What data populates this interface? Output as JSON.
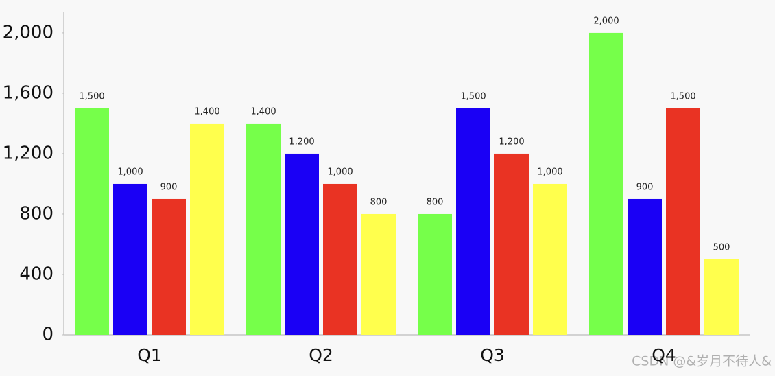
{
  "chart_data": {
    "type": "bar",
    "categories": [
      "Q1",
      "Q2",
      "Q3",
      "Q4"
    ],
    "series": [
      {
        "color": "#76ff4a",
        "values": [
          1500,
          1400,
          800,
          2000
        ],
        "value_labels": [
          "1,500",
          "1,400",
          "800",
          "2,000"
        ]
      },
      {
        "color": "#1a00f5",
        "values": [
          1000,
          1200,
          1500,
          900
        ],
        "value_labels": [
          "1,000",
          "1,200",
          "1,500",
          "900"
        ]
      },
      {
        "color": "#e93323",
        "values": [
          900,
          1000,
          1200,
          1500
        ],
        "value_labels": [
          "900",
          "1,000",
          "1,200",
          "1,500"
        ]
      },
      {
        "color": "#ffff4d",
        "values": [
          1400,
          800,
          1000,
          500
        ],
        "value_labels": [
          "1,400",
          "800",
          "1,000",
          "500"
        ]
      }
    ],
    "ylim": [
      0,
      2136
    ],
    "yticks": [
      0,
      400,
      800,
      {
        "value": 1200,
        "label": "1,200"
      },
      {
        "value": 1600,
        "label": "1,600"
      },
      {
        "value": 2000,
        "label": "2,000"
      }
    ],
    "grid": false
  },
  "watermark": "CSDN @&岁月不待人&"
}
